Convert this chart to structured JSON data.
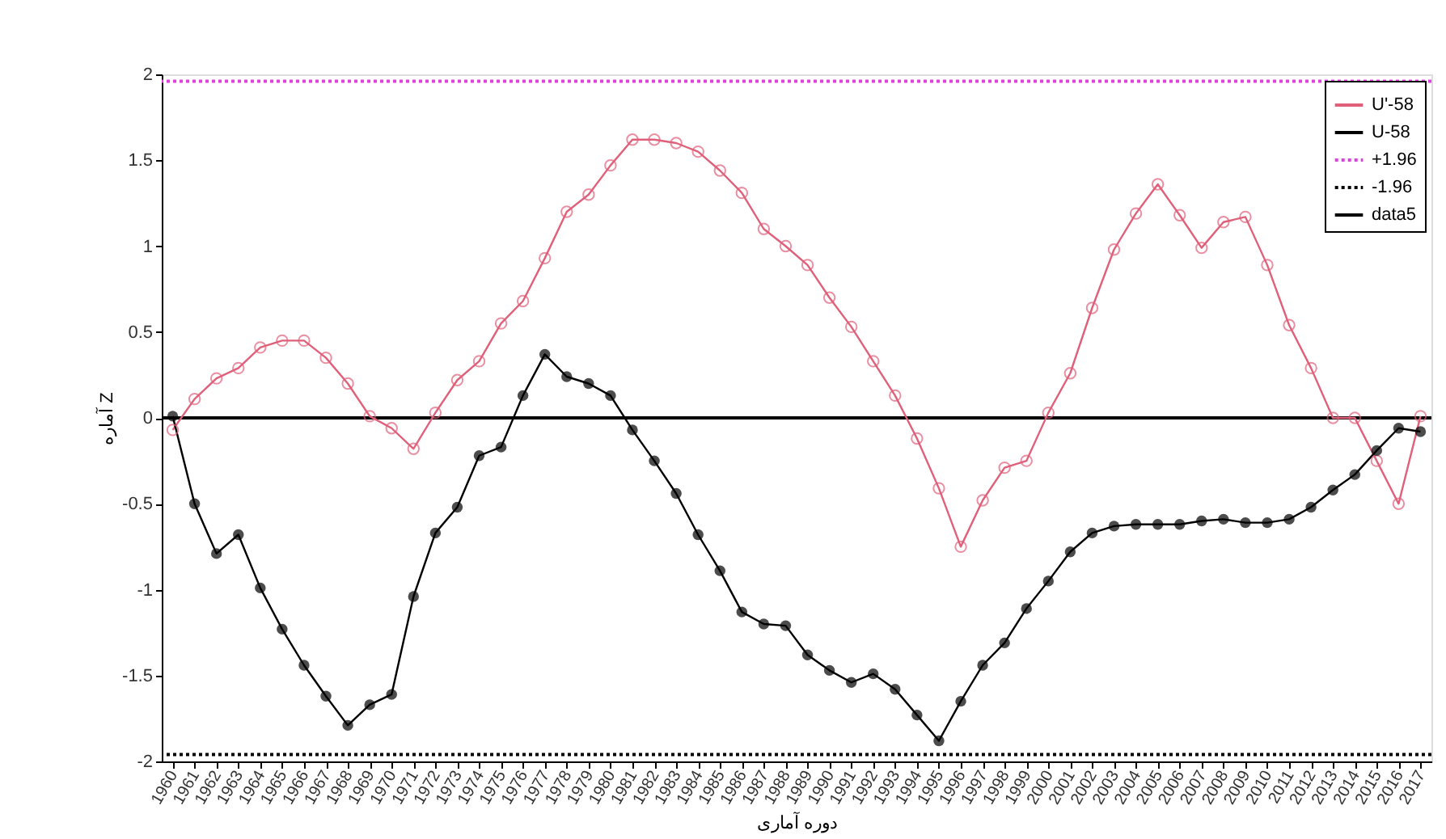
{
  "chart_data": {
    "type": "line",
    "xlabel": "دوره آماری",
    "ylabel": "آماره Z",
    "categories": [
      "1960",
      "1961",
      "1962",
      "1963",
      "1964",
      "1965",
      "1966",
      "1967",
      "1968",
      "1969",
      "1970",
      "1971",
      "1972",
      "1973",
      "1974",
      "1975",
      "1976",
      "1977",
      "1978",
      "1979",
      "1980",
      "1981",
      "1982",
      "1983",
      "1984",
      "1985",
      "1986",
      "1987",
      "1988",
      "1989",
      "1990",
      "1991",
      "1992",
      "1993",
      "1994",
      "1995",
      "1996",
      "1997",
      "1998",
      "1999",
      "2000",
      "2001",
      "2002",
      "2003",
      "2004",
      "2005",
      "2006",
      "2007",
      "2008",
      "2009",
      "2010",
      "2011",
      "2012",
      "2013",
      "2014",
      "2015",
      "2016",
      "2017"
    ],
    "series": [
      {
        "name": "U'-58",
        "color": "#e0607a",
        "marker": "circle",
        "values": [
          -0.07,
          0.11,
          0.23,
          0.29,
          0.41,
          0.45,
          0.45,
          0.35,
          0.2,
          0.01,
          -0.06,
          -0.18,
          0.03,
          0.22,
          0.33,
          0.55,
          0.68,
          0.93,
          1.2,
          1.3,
          1.47,
          1.62,
          1.62,
          1.6,
          1.55,
          1.44,
          1.31,
          1.1,
          1.0,
          0.89,
          0.7,
          0.53,
          0.33,
          0.13,
          -0.12,
          -0.41,
          -0.75,
          -0.48,
          -0.29,
          -0.25,
          0.03,
          0.26,
          0.64,
          0.98,
          1.19,
          1.36,
          1.18,
          0.99,
          1.14,
          1.17,
          0.89,
          0.54,
          0.29,
          0.0,
          0.0,
          -0.25,
          -0.5,
          0.01
        ]
      },
      {
        "name": "U-58",
        "color": "#000000",
        "marker": "circle",
        "values": [
          0.01,
          -0.5,
          -0.79,
          -0.68,
          -0.99,
          -1.23,
          -1.44,
          -1.62,
          -1.79,
          -1.67,
          -1.61,
          -1.04,
          -0.67,
          -0.52,
          -0.22,
          -0.17,
          0.13,
          0.37,
          0.24,
          0.2,
          0.13,
          -0.07,
          -0.25,
          -0.44,
          -0.68,
          -0.89,
          -1.13,
          -1.2,
          -1.21,
          -1.38,
          -1.47,
          -1.54,
          -1.49,
          -1.58,
          -1.73,
          -1.88,
          -1.65,
          -1.44,
          -1.31,
          -1.11,
          -0.95,
          -0.78,
          -0.67,
          -0.63,
          -0.62,
          -0.62,
          -0.62,
          -0.6,
          -0.59,
          -0.61,
          -0.61,
          -0.59,
          -0.52,
          -0.42,
          -0.33,
          -0.19,
          -0.06,
          -0.08
        ]
      }
    ],
    "ref_lines": [
      {
        "axis": "y",
        "value": 1.96,
        "label": "+1.96",
        "color": "#e040e0",
        "line_style": "dotted"
      },
      {
        "axis": "y",
        "value": -1.96,
        "label": "-1.96",
        "color": "#000000",
        "line_style": "dotted"
      },
      {
        "axis": "y",
        "value": 0,
        "label": "data5",
        "color": "#000000",
        "line_style": "solid"
      }
    ],
    "ylim": [
      -2,
      2
    ],
    "yticks": [
      -2,
      -1.5,
      -1,
      -0.5,
      0,
      0.5,
      1,
      1.5,
      2
    ],
    "legend": "top right",
    "grid": false,
    "line_style": "solid"
  }
}
